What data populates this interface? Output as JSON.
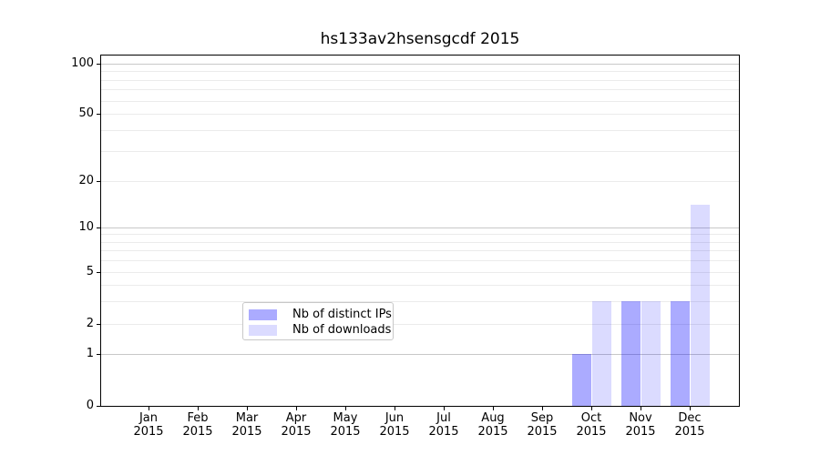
{
  "title": "hs133av2hsensgcdf 2015",
  "chart_data": {
    "type": "bar",
    "title": "hs133av2hsensgcdf 2015",
    "categories": [
      "Jan",
      "Feb",
      "Mar",
      "Apr",
      "May",
      "Jun",
      "Jul",
      "Aug",
      "Sep",
      "Oct",
      "Nov",
      "Dec"
    ],
    "category_year_label": "2015",
    "series": [
      {
        "name": "Nb of distinct IPs",
        "color": "rgba(0,0,255,0.33)",
        "color_flat": "#aaaaff",
        "values": [
          0,
          0,
          0,
          0,
          0,
          0,
          0,
          0,
          0,
          1,
          3,
          3
        ]
      },
      {
        "name": "Nb of downloads",
        "color": "rgba(0,0,255,0.14)",
        "color_flat": "#dcdcff",
        "values": [
          0,
          0,
          0,
          0,
          0,
          0,
          0,
          0,
          0,
          3,
          3,
          14
        ]
      }
    ],
    "yscale": "log-like (symlog, shows 0)",
    "y_ticks": [
      0,
      1,
      2,
      5,
      10,
      20,
      50,
      100
    ],
    "ylim": [
      0,
      110
    ],
    "xlabel": "",
    "ylabel": "",
    "grid": "horizontal minor+major gridlines",
    "legend_position": "lower center",
    "colors": {
      "major_grid": "#c8c8c8",
      "minor_grid": "#ebebeb",
      "axis_frame": "#000000",
      "background": "#ffffff"
    }
  }
}
